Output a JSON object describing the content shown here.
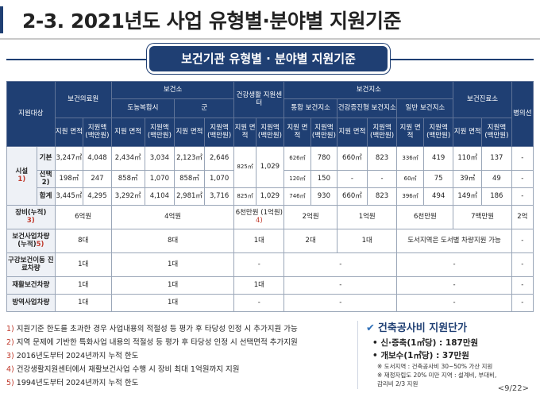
{
  "header": {
    "title": "2-3. 2021년도 사업 유형별·분야별 지원기준",
    "subtitle": "보건기관 유형별 · 분야별 지원기준"
  },
  "table": {
    "corner": "지원대상",
    "groups": {
      "medical_center": "보건의료원",
      "health_center": "보건소",
      "urban_complex": "도농복합시",
      "gun": "군",
      "health_life_center": "건강생활 지원센터",
      "branch": "보건지소",
      "integrated_branch": "통합 보건지소",
      "promotion_branch": "건강증진형 보건지소",
      "general_branch": "일반 보건지소",
      "clinic": "보건진료소",
      "ward": "병의선"
    },
    "col_area": "지원 면적",
    "col_amount": "지원액 (백만원)",
    "facility": {
      "label": "시설",
      "note": "1)",
      "rows": [
        {
          "name": "기본",
          "values": [
            "3,247㎡",
            "4,048",
            "2,434㎡",
            "3,034",
            "2,123㎡",
            "2,646",
            "825㎡",
            "1,029",
            "626㎡",
            "780",
            "660㎡",
            "823",
            "336㎡",
            "419",
            "110㎡",
            "137",
            "-"
          ]
        },
        {
          "name": "선택2)",
          "values": [
            "198㎡",
            "247",
            "858㎡",
            "1,070",
            "858㎡",
            "1,070",
            "",
            "",
            "120㎡",
            "150",
            "-",
            "-",
            "60㎡",
            "75",
            "39㎡",
            "49",
            "-"
          ]
        },
        {
          "name": "합계",
          "values": [
            "3,445㎡",
            "4,295",
            "3,292㎡",
            "4,104",
            "2,981㎡",
            "3,716",
            "825㎡",
            "1,029",
            "746㎡",
            "930",
            "660㎡",
            "823",
            "396㎡",
            "494",
            "149㎡",
            "186",
            "-"
          ]
        }
      ]
    },
    "equipment": {
      "label": "장비(누적)",
      "note": "3)",
      "values": [
        "6억원",
        "4억원",
        "6천만원 (1억원)",
        "4)",
        "2억원",
        "1억원",
        "6천만원",
        "7백만원",
        "2억"
      ]
    },
    "vehicle": {
      "label": "보건사업차량 (누적)",
      "note": "5)",
      "values": [
        "8대",
        "8대",
        "1대",
        "2대",
        "1대",
        "도서지역은 도서별 차량지원 가능",
        "-"
      ]
    },
    "mobile_clinic": {
      "label": "구강보건이동 진료차량",
      "values": [
        "1대",
        "1대",
        "-",
        "-",
        "-",
        "-"
      ]
    },
    "rehab_vehicle": {
      "label": "재활보건차량",
      "values": [
        "1대",
        "1대",
        "1대",
        "-",
        "-",
        "-"
      ]
    },
    "pest_vehicle": {
      "label": "방역사업차량",
      "values": [
        "1대",
        "1대",
        "-",
        "-",
        "-",
        "-"
      ]
    }
  },
  "notes": [
    {
      "num": "1)",
      "text": "지원기준 한도를 초과한 경우 사업내용의 적절성 등 평가 후 타당성 인정 시 추가지원 가능"
    },
    {
      "num": "2)",
      "text": "지역 문제에 기반한 특화사업 내용의 적절성 등 평가 후 타당성 인정 시 선택면적 추가지원"
    },
    {
      "num": "3)",
      "text": "2016년도부터 2024년까지 누적 한도"
    },
    {
      "num": "4)",
      "text": "건강생활지원센터에서 재활보건사업 수행 시 장비 최대 1억원까지 지원"
    },
    {
      "num": "5)",
      "text": "1994년도부터 2024년까지 누적 한도"
    }
  ],
  "construction_cost": {
    "title": "건축공사비 지원단가",
    "new_build": "• 신·증축(1㎡당) : 187만원",
    "remodel": "• 개보수(1㎡당) :  37만원",
    "note1": "※ 도서지역 : 건축공사비 30~50% 가산 지원",
    "note2": "※ 재정자립도 20% 미만 지역 : 설계비, 부대비,",
    "note3": "감리비 2/3 지원"
  },
  "page": "<9/22>"
}
